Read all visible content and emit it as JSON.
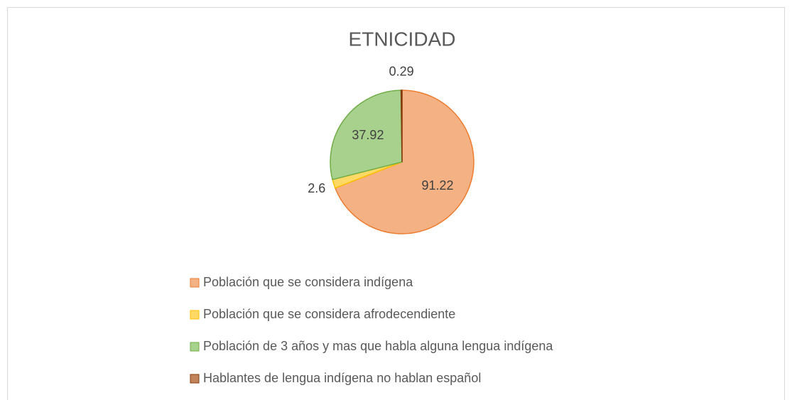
{
  "chart_data": {
    "type": "pie",
    "title": "ETNICIDAD",
    "categories": [
      "Población que se considera indígena",
      "Población que se considera afrodecendiente",
      "Población de 3 años y mas que habla alguna lengua indígena",
      "Hablantes de lengua indígena no hablan español"
    ],
    "values": [
      91.22,
      2.6,
      37.92,
      0.29
    ],
    "colors": [
      "#f4b183",
      "#ffd966",
      "#a9d18e",
      "#c0835a"
    ],
    "edge_colors": [
      "#ed7d31",
      "#ffc000",
      "#70ad47",
      "#843c0c"
    ],
    "legend": "bottom"
  }
}
